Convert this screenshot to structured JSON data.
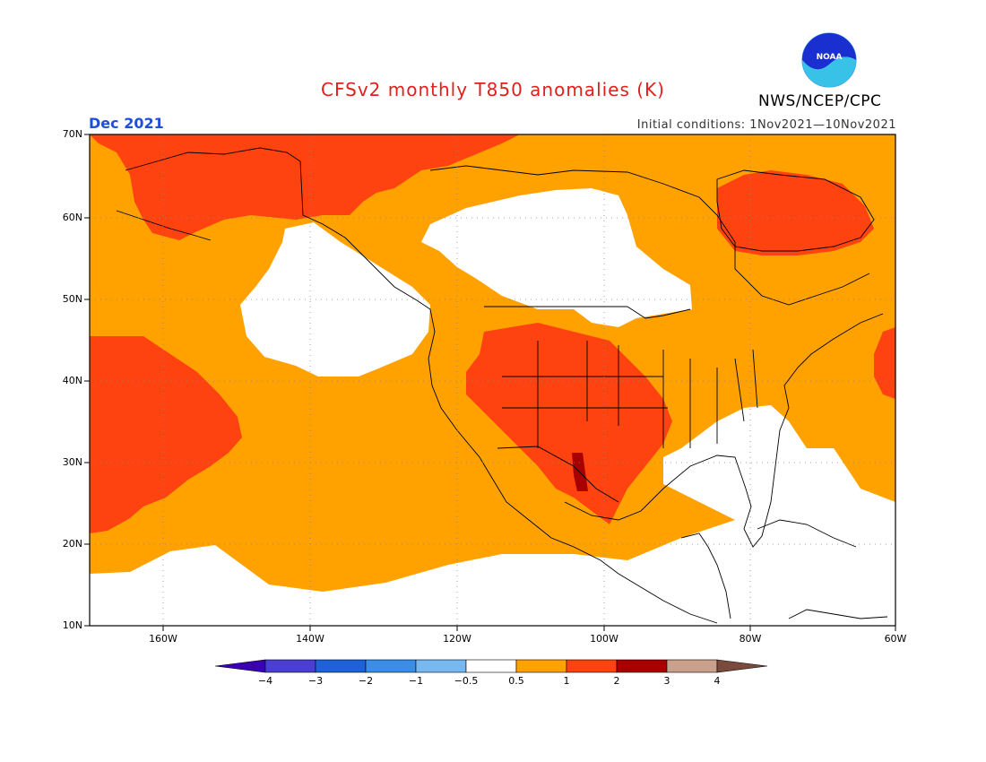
{
  "title": "CFSv2 monthly T850 anomalies (K)",
  "month": "Dec 2021",
  "agency": "NWS/NCEP/CPC",
  "logo_text": "NOAA",
  "initial_conditions": "Initial conditions: 1Nov2021—10Nov2021",
  "lat_labels": [
    "70N",
    "60N",
    "50N",
    "40N",
    "30N",
    "20N",
    "10N"
  ],
  "lon_labels": [
    "160W",
    "140W",
    "120W",
    "100W",
    "80W",
    "60W"
  ],
  "colorbar": {
    "labels": [
      "−4",
      "−3",
      "−2",
      "−1",
      "−0.5",
      "0.5",
      "1",
      "2",
      "3",
      "4"
    ],
    "colors": [
      "#3a00b4",
      "#4b3fd2",
      "#1e62d8",
      "#3a8ee8",
      "#78b8f0",
      "#ffffff",
      "#ffa200",
      "#ff4310",
      "#a80000",
      "#c8a08c",
      "#7a4a3c"
    ]
  },
  "colors": {
    "anomaly_0_5_to_1": "#ffa200",
    "anomaly_1_to_2": "#ff4310",
    "anomaly_2_to_3": "#a80000"
  }
}
